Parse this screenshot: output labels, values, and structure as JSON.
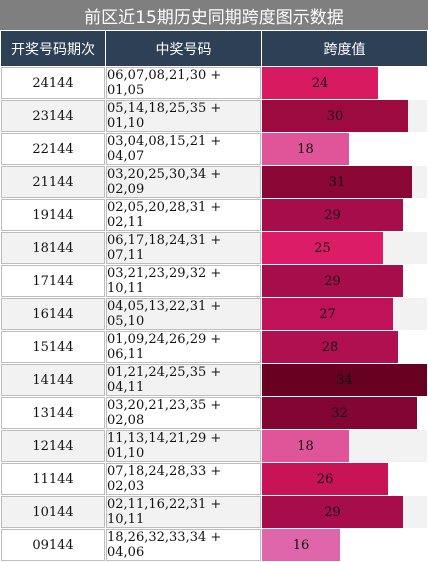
{
  "title": "前区近15期历史同期跨度图示数据",
  "columns": [
    "开奖号码期次",
    "中奖号码",
    "跨度值"
  ],
  "chart_data": {
    "type": "bar",
    "max_value": 34,
    "categories": [
      "24144",
      "23144",
      "22144",
      "21144",
      "19144",
      "18144",
      "17144",
      "16144",
      "15144",
      "14144",
      "13144",
      "12144",
      "11144",
      "10144",
      "09144"
    ],
    "numbers": [
      "06,07,08,21,30 + 01,05",
      "05,14,18,25,35 + 01,10",
      "03,04,08,15,21 + 04,07",
      "03,20,25,30,34 + 02,09",
      "02,05,20,28,31 + 02,11",
      "06,17,18,24,31 + 07,11",
      "03,21,23,29,32 + 10,11",
      "04,05,13,22,31 + 05,10",
      "01,09,24,26,29 + 06,11",
      "01,21,24,25,35 + 04,11",
      "03,20,21,23,35 + 02,08",
      "11,13,14,21,29 + 01,10",
      "07,18,24,28,33 + 02,03",
      "02,11,16,22,31 + 10,11",
      "18,26,32,33,34 + 04,06"
    ],
    "values": [
      24,
      30,
      18,
      31,
      29,
      25,
      29,
      27,
      28,
      34,
      32,
      18,
      26,
      29,
      16
    ],
    "colors": [
      "#d81b60",
      "#9c0a40",
      "#e0559a",
      "#8a0634",
      "#a60d4a",
      "#dc1c66",
      "#a60d4a",
      "#c01258",
      "#b00f50",
      "#680022",
      "#820534",
      "#e0559a",
      "#c81456",
      "#a60d4a",
      "#df66aa"
    ]
  }
}
